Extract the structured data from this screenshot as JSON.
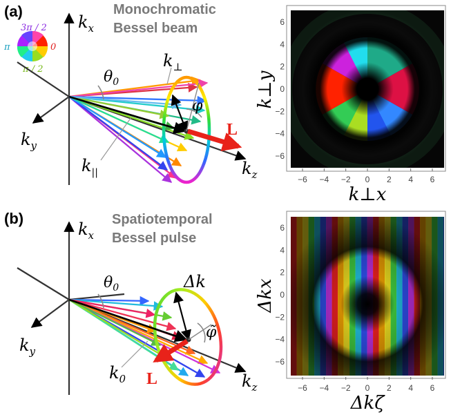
{
  "panel_a": {
    "tag": "(a)",
    "title_line1": "Monochromatic",
    "title_line2": "Bessel beam",
    "labels": {
      "kx": "k",
      "kx_sub": "x",
      "ky": "k",
      "ky_sub": "y",
      "kz": "k",
      "kz_sub": "z",
      "kperp": "k",
      "kperp_sub": "⊥",
      "kpar": "k",
      "kpar_sub": "||",
      "theta": "θ",
      "theta_sub": "0",
      "phi": "φ",
      "L": "L"
    },
    "wheel_labels": {
      "top": "3π / 2",
      "left": "π",
      "right": "0",
      "bottom": "π / 2"
    },
    "plot": {
      "ylabel": "k⊥y",
      "xlabel": "k⊥x",
      "xticks": [
        "−6",
        "−4",
        "−2",
        "0",
        "2",
        "4",
        "6"
      ],
      "yticks": [
        "6",
        "4",
        "2",
        "0",
        "−2",
        "−4",
        "−6"
      ]
    }
  },
  "panel_b": {
    "tag": "(b)",
    "title_line1": "Spatiotemporal",
    "title_line2": "Bessel pulse",
    "labels": {
      "kx": "k",
      "kx_sub": "x",
      "ky": "k",
      "ky_sub": "y",
      "kz": "k",
      "kz_sub": "z",
      "dk": "Δk",
      "k0": "k",
      "k0_sub": "0",
      "theta": "θ",
      "theta_sub": "0",
      "phi": "φ̃",
      "L": "L"
    },
    "plot": {
      "ylabel": "Δkx",
      "xlabel": "Δkζ",
      "xticks": [
        "−6",
        "−4",
        "−2",
        "0",
        "2",
        "4",
        "6"
      ],
      "yticks": [
        "6",
        "4",
        "2",
        "0",
        "−2",
        "−4",
        "−6"
      ]
    }
  },
  "colors": {
    "L_arrow": "#e8221a",
    "title_gray": "#7a7a7a"
  }
}
